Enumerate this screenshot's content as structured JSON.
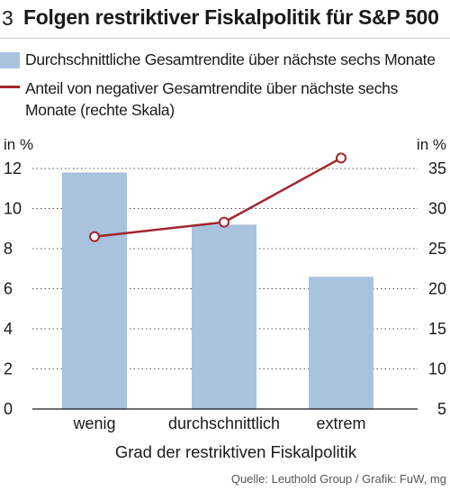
{
  "header": {
    "figure_number": "3",
    "title": "Folgen restriktiver Fiskalpolitik für S&P 500"
  },
  "legend": {
    "bar_label": "Durchschnittliche Gesamtrendite über nächste sechs Monate",
    "line_label": "Anteil von negativer Gesamtrendite  über nächste sechs Monate (rechte Skala)"
  },
  "axes": {
    "left_unit": "in %",
    "right_unit": "in %"
  },
  "source": "Quelle: Leuthold Group / Grafik: FuW, mg",
  "colors": {
    "bar": "#a9c2de",
    "line": "#a3262e",
    "grid": "#555555"
  },
  "chart_data": {
    "type": "bar",
    "categories": [
      "wenig",
      "durchschnittlich",
      "extrem"
    ],
    "xlabel": "Grad der restriktiven Fiskalpolitik",
    "ylabel": "in %",
    "ylim": [
      0,
      12
    ],
    "y_ticks": [
      0,
      2,
      4,
      6,
      8,
      10,
      12
    ],
    "y2label": "in %",
    "y2lim": [
      5,
      35
    ],
    "y2_ticks": [
      5,
      10,
      15,
      20,
      25,
      30,
      35
    ],
    "grid": "horizontal dotted",
    "series": [
      {
        "name": "Durchschnittliche Gesamtrendite über nächste sechs Monate",
        "type": "bar",
        "axis": "left",
        "values": [
          11.8,
          9.2,
          6.6
        ]
      },
      {
        "name": "Anteil von negativer Gesamtrendite  über nächste sechs Monate (rechte Skala)",
        "type": "line",
        "axis": "right",
        "values": [
          26.5,
          28.3,
          36.3
        ]
      }
    ]
  }
}
